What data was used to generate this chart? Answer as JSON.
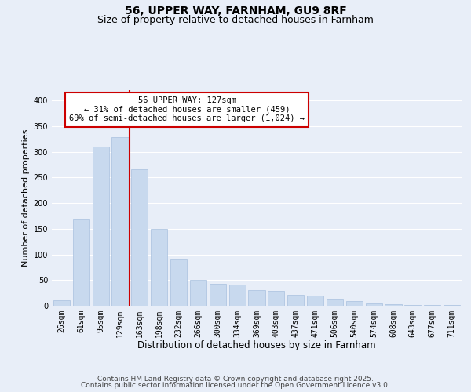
{
  "title": "56, UPPER WAY, FARNHAM, GU9 8RF",
  "subtitle": "Size of property relative to detached houses in Farnham",
  "xlabel": "Distribution of detached houses by size in Farnham",
  "ylabel": "Number of detached properties",
  "categories": [
    "26sqm",
    "61sqm",
    "95sqm",
    "129sqm",
    "163sqm",
    "198sqm",
    "232sqm",
    "266sqm",
    "300sqm",
    "334sqm",
    "369sqm",
    "403sqm",
    "437sqm",
    "471sqm",
    "506sqm",
    "540sqm",
    "574sqm",
    "608sqm",
    "643sqm",
    "677sqm",
    "711sqm"
  ],
  "values": [
    10,
    170,
    310,
    328,
    265,
    150,
    92,
    50,
    43,
    42,
    30,
    29,
    21,
    20,
    12,
    9,
    4,
    3,
    2,
    1,
    1
  ],
  "bar_color": "#c8d9ee",
  "bar_edge_color": "#a8c0de",
  "vline_x": 3.5,
  "vline_color": "#cc0000",
  "ylim": [
    0,
    420
  ],
  "yticks": [
    0,
    50,
    100,
    150,
    200,
    250,
    300,
    350,
    400
  ],
  "annotation_box_text": "56 UPPER WAY: 127sqm\n← 31% of detached houses are smaller (459)\n69% of semi-detached houses are larger (1,024) →",
  "bg_color": "#e8eef8",
  "plot_bg_color": "#e8eef8",
  "footer_line1": "Contains HM Land Registry data © Crown copyright and database right 2025.",
  "footer_line2": "Contains public sector information licensed under the Open Government Licence v3.0.",
  "grid_color": "#ffffff",
  "title_fontsize": 10,
  "subtitle_fontsize": 9,
  "xlabel_fontsize": 8.5,
  "ylabel_fontsize": 8,
  "tick_fontsize": 7,
  "annot_fontsize": 7.5,
  "footer_fontsize": 6.5
}
